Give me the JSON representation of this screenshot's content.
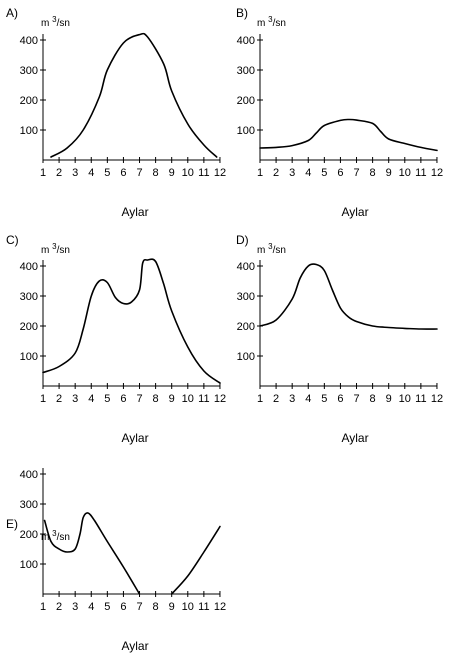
{
  "chart_data": [
    {
      "type": "line",
      "panel": "A)",
      "ylabel": {
        "base": "m ",
        "sup": "3",
        "rest": "/sn"
      },
      "xlabel": "Aylar",
      "x_ticks": [
        "1",
        "2",
        "3",
        "4",
        "5",
        "6",
        "7",
        "8",
        "9",
        "10",
        "11",
        "12"
      ],
      "y_ticks": [
        "100",
        "200",
        "300",
        "400"
      ],
      "xlim": [
        1,
        12
      ],
      "ylim": [
        0,
        420
      ],
      "grid": false,
      "series": [
        {
          "x": [
            1.5,
            2.5,
            3.5,
            4.5,
            5,
            6,
            7,
            7.5,
            8.5,
            9,
            10,
            11,
            11.8
          ],
          "y": [
            10,
            40,
            100,
            210,
            300,
            390,
            418,
            410,
            320,
            230,
            120,
            50,
            10
          ]
        }
      ]
    },
    {
      "type": "line",
      "panel": "B)",
      "ylabel": {
        "base": "m ",
        "sup": "3",
        "rest": "/sn"
      },
      "xlabel": "Aylar",
      "x_ticks": [
        "1",
        "2",
        "3",
        "4",
        "5",
        "6",
        "7",
        "8",
        "9",
        "10",
        "11",
        "12"
      ],
      "y_ticks": [
        "100",
        "200",
        "300",
        "400"
      ],
      "xlim": [
        1,
        12
      ],
      "ylim": [
        0,
        420
      ],
      "grid": false,
      "series": [
        {
          "x": [
            1,
            2,
            3,
            4,
            4.5,
            5,
            6,
            6.5,
            7,
            8,
            8.5,
            9,
            10,
            11,
            12
          ],
          "y": [
            40,
            42,
            48,
            65,
            90,
            115,
            132,
            135,
            133,
            122,
            95,
            70,
            55,
            42,
            32
          ]
        }
      ]
    },
    {
      "type": "line",
      "panel": "C)",
      "ylabel": {
        "base": "m ",
        "sup": "3",
        "rest": "/sn"
      },
      "xlabel": "Aylar",
      "x_ticks": [
        "1",
        "2",
        "3",
        "4",
        "5",
        "6",
        "7",
        "8",
        "9",
        "10",
        "11",
        "12"
      ],
      "y_ticks": [
        "100",
        "200",
        "300",
        "400"
      ],
      "xlim": [
        1,
        12
      ],
      "ylim": [
        0,
        420
      ],
      "grid": false,
      "series": [
        {
          "x": [
            1,
            2,
            3,
            3.5,
            4,
            4.5,
            5,
            5.5,
            6,
            6.5,
            7,
            7.2,
            7.5,
            8,
            8.5,
            9,
            10,
            11,
            12
          ],
          "y": [
            45,
            65,
            110,
            190,
            300,
            350,
            345,
            295,
            275,
            280,
            320,
            410,
            420,
            415,
            340,
            250,
            130,
            50,
            10
          ]
        }
      ]
    },
    {
      "type": "line",
      "panel": "D)",
      "ylabel": {
        "base": "m ",
        "sup": "3",
        "rest": "/sn"
      },
      "xlabel": "Aylar",
      "x_ticks": [
        "1",
        "2",
        "3",
        "4",
        "5",
        "6",
        "7",
        "8",
        "9",
        "10",
        "11",
        "12"
      ],
      "y_ticks": [
        "100",
        "200",
        "300",
        "400"
      ],
      "xlim": [
        1,
        12
      ],
      "ylim": [
        0,
        420
      ],
      "grid": false,
      "series": [
        {
          "x": [
            1,
            2,
            3,
            3.5,
            4,
            4.5,
            5,
            5.5,
            6,
            6.5,
            7,
            8,
            9,
            10,
            11,
            12
          ],
          "y": [
            200,
            220,
            290,
            360,
            400,
            405,
            385,
            320,
            260,
            230,
            215,
            200,
            195,
            192,
            190,
            190
          ]
        }
      ]
    },
    {
      "type": "line",
      "panel": "E)",
      "ylabel": {
        "base": "m ",
        "sup": "3",
        "rest": "/sn"
      },
      "xlabel": "Aylar",
      "x_ticks": [
        "1",
        "2",
        "3",
        "4",
        "5",
        "6",
        "7",
        "8",
        "9",
        "10",
        "11",
        "12"
      ],
      "y_ticks": [
        "100",
        "200",
        "300",
        "400"
      ],
      "xlim": [
        1,
        12
      ],
      "ylim": [
        0,
        420
      ],
      "grid": false,
      "series": [
        {
          "x": [
            1.1,
            1.5,
            2,
            2.5,
            3,
            3.3,
            3.5,
            3.8,
            4.2,
            5,
            6,
            7
          ],
          "y": [
            245,
            175,
            150,
            140,
            150,
            200,
            255,
            270,
            245,
            175,
            90,
            0
          ]
        },
        {
          "x": [
            9,
            10,
            11,
            12
          ],
          "y": [
            0,
            60,
            140,
            225
          ]
        }
      ]
    }
  ]
}
